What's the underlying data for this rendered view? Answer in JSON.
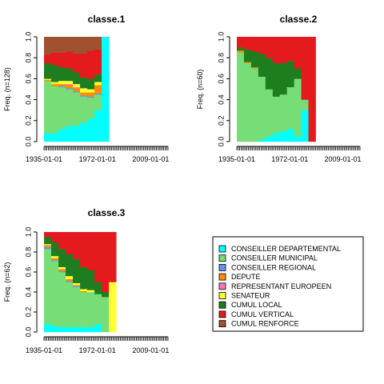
{
  "chart_data": [
    {
      "type": "area",
      "title": "classe.1",
      "ylabel": "Freq. (n=128)",
      "xlabel": "",
      "ylim": [
        0,
        1
      ],
      "ytick_labels": [
        "0.0",
        "0.2",
        "0.4",
        "0.6",
        "0.8",
        "1.0"
      ],
      "xtick_labels": [
        "1935-01-01",
        "1972-01-01",
        "2009-01-01"
      ],
      "x_range": [
        "1935-01-01",
        "2021-01-01"
      ],
      "stacked_bottom_to_top": [
        "CONSEILLER DEPARTEMENTAL",
        "CONSEILLER MUNICIPAL",
        "CONSEILLER REGIONAL",
        "DEPUTE",
        "REPRESENTANT EUROPEEN",
        "SENATEUR",
        "CUMUL LOCAL",
        "CUMUL VERTICAL",
        "CUMUL RENFORCE"
      ],
      "x": [
        "1935-01-01",
        "1940-01-01",
        "1945-01-01",
        "1950-01-01",
        "1955-01-01",
        "1960-01-01",
        "1965-01-01",
        "1970-01-01",
        "1975-01-01"
      ],
      "series": [
        {
          "name": "CONSEILLER DEPARTEMENTAL",
          "values": [
            0.08,
            0.08,
            0.12,
            0.15,
            0.15,
            0.18,
            0.22,
            0.3,
            1.0
          ]
        },
        {
          "name": "CONSEILLER MUNICIPAL",
          "values": [
            0.5,
            0.45,
            0.4,
            0.35,
            0.32,
            0.25,
            0.2,
            0.15,
            0.0
          ]
        },
        {
          "name": "CONSEILLER REGIONAL",
          "values": [
            0.0,
            0.0,
            0.01,
            0.01,
            0.01,
            0.01,
            0.01,
            0.01,
            0.0
          ]
        },
        {
          "name": "DEPUTE",
          "values": [
            0.01,
            0.02,
            0.02,
            0.03,
            0.03,
            0.03,
            0.04,
            0.08,
            0.0
          ]
        },
        {
          "name": "REPRESENTANT EUROPEEN",
          "values": [
            0.0,
            0.0,
            0.0,
            0.01,
            0.01,
            0.0,
            0.0,
            0.0,
            0.0
          ]
        },
        {
          "name": "SENATEUR",
          "values": [
            0.01,
            0.02,
            0.03,
            0.03,
            0.03,
            0.04,
            0.03,
            0.03,
            0.0
          ]
        },
        {
          "name": "CUMUL LOCAL",
          "values": [
            0.15,
            0.16,
            0.13,
            0.12,
            0.11,
            0.1,
            0.1,
            0.07,
            0.0
          ]
        },
        {
          "name": "CUMUL VERTICAL",
          "values": [
            0.08,
            0.12,
            0.14,
            0.16,
            0.18,
            0.23,
            0.27,
            0.24,
            0.0
          ]
        },
        {
          "name": "CUMUL RENFORCE",
          "values": [
            0.17,
            0.15,
            0.15,
            0.14,
            0.16,
            0.16,
            0.13,
            0.12,
            0.0
          ]
        }
      ]
    },
    {
      "type": "area",
      "title": "classe.2",
      "ylabel": "Freq. (n=60)",
      "xlabel": "",
      "ylim": [
        0,
        1
      ],
      "ytick_labels": [
        "0.0",
        "0.2",
        "0.4",
        "0.6",
        "0.8",
        "1.0"
      ],
      "xtick_labels": [
        "1935-01-01",
        "1972-01-01",
        "2009-01-01"
      ],
      "x_range": [
        "1935-01-01",
        "2021-01-01"
      ],
      "x": [
        "1935-01-01",
        "1940-01-01",
        "1945-01-01",
        "1950-01-01",
        "1955-01-01",
        "1960-01-01",
        "1965-01-01",
        "1970-01-01",
        "1975-01-01",
        "1980-01-01",
        "1985-01-01"
      ],
      "series": [
        {
          "name": "CONSEILLER DEPARTEMENTAL",
          "values": [
            0.0,
            0.0,
            0.0,
            0.02,
            0.05,
            0.08,
            0.1,
            0.12,
            0.05,
            0.3,
            0.0
          ]
        },
        {
          "name": "CONSEILLER MUNICIPAL",
          "values": [
            0.85,
            0.75,
            0.7,
            0.6,
            0.45,
            0.35,
            0.35,
            0.4,
            0.55,
            0.1,
            0.0
          ]
        },
        {
          "name": "CONSEILLER REGIONAL",
          "values": [
            0.0,
            0.0,
            0.0,
            0.0,
            0.0,
            0.0,
            0.0,
            0.0,
            0.0,
            0.0,
            0.0
          ]
        },
        {
          "name": "DEPUTE",
          "values": [
            0.02,
            0.01,
            0.01,
            0.0,
            0.0,
            0.0,
            0.0,
            0.0,
            0.0,
            0.0,
            0.0
          ]
        },
        {
          "name": "REPRESENTANT EUROPEEN",
          "values": [
            0.0,
            0.0,
            0.0,
            0.0,
            0.0,
            0.0,
            0.0,
            0.0,
            0.0,
            0.0,
            0.0
          ]
        },
        {
          "name": "SENATEUR",
          "values": [
            0.0,
            0.0,
            0.0,
            0.0,
            0.0,
            0.0,
            0.0,
            0.0,
            0.0,
            0.0,
            0.0
          ]
        },
        {
          "name": "CUMUL LOCAL",
          "values": [
            0.03,
            0.12,
            0.15,
            0.22,
            0.3,
            0.32,
            0.3,
            0.25,
            0.1,
            0.0,
            0.0
          ]
        },
        {
          "name": "CUMUL VERTICAL",
          "values": [
            0.1,
            0.12,
            0.14,
            0.16,
            0.2,
            0.25,
            0.25,
            0.23,
            0.3,
            0.6,
            1.0
          ]
        },
        {
          "name": "CUMUL RENFORCE",
          "values": [
            0.0,
            0.0,
            0.0,
            0.0,
            0.0,
            0.0,
            0.0,
            0.0,
            0.0,
            0.0,
            0.0
          ]
        }
      ]
    },
    {
      "type": "area",
      "title": "classe.3",
      "ylabel": "Freq. (n=62)",
      "xlabel": "",
      "ylim": [
        0,
        1
      ],
      "ytick_labels": [
        "0.0",
        "0.2",
        "0.4",
        "0.6",
        "0.8",
        "1.0"
      ],
      "xtick_labels": [
        "1935-01-01",
        "1972-01-01",
        "2009-01-01"
      ],
      "x_range": [
        "1935-01-01",
        "2021-01-01"
      ],
      "x": [
        "1935-01-01",
        "1940-01-01",
        "1945-01-01",
        "1950-01-01",
        "1955-01-01",
        "1960-01-01",
        "1965-01-01",
        "1970-01-01",
        "1975-01-01",
        "1980-01-01"
      ],
      "series": [
        {
          "name": "CONSEILLER DEPARTEMENTAL",
          "values": [
            0.08,
            0.06,
            0.05,
            0.05,
            0.05,
            0.05,
            0.05,
            0.08,
            0.0,
            0.0
          ]
        },
        {
          "name": "CONSEILLER MUNICIPAL",
          "values": [
            0.75,
            0.65,
            0.55,
            0.45,
            0.4,
            0.35,
            0.35,
            0.3,
            0.35,
            0.0
          ]
        },
        {
          "name": "CONSEILLER REGIONAL",
          "values": [
            0.02,
            0.01,
            0.01,
            0.01,
            0.01,
            0.0,
            0.0,
            0.0,
            0.0,
            0.0
          ]
        },
        {
          "name": "DEPUTE",
          "values": [
            0.02,
            0.02,
            0.02,
            0.02,
            0.01,
            0.01,
            0.0,
            0.0,
            0.0,
            0.0
          ]
        },
        {
          "name": "REPRESENTANT EUROPEEN",
          "values": [
            0.0,
            0.0,
            0.0,
            0.0,
            0.0,
            0.0,
            0.0,
            0.0,
            0.0,
            0.0
          ]
        },
        {
          "name": "SENATEUR",
          "values": [
            0.01,
            0.02,
            0.02,
            0.03,
            0.02,
            0.02,
            0.02,
            0.0,
            0.0,
            0.5
          ]
        },
        {
          "name": "CUMUL LOCAL",
          "values": [
            0.07,
            0.14,
            0.18,
            0.22,
            0.24,
            0.22,
            0.2,
            0.12,
            0.05,
            0.0
          ]
        },
        {
          "name": "CUMUL VERTICAL",
          "values": [
            0.05,
            0.1,
            0.17,
            0.22,
            0.27,
            0.35,
            0.38,
            0.5,
            0.6,
            0.5
          ]
        },
        {
          "name": "CUMUL RENFORCE",
          "values": [
            0.0,
            0.0,
            0.0,
            0.0,
            0.0,
            0.0,
            0.0,
            0.0,
            0.0,
            0.0
          ]
        }
      ]
    }
  ],
  "legend": {
    "placement": "bottom-right",
    "items": [
      {
        "label": "CONSEILLER DEPARTEMENTAL",
        "color": "#00FFFF"
      },
      {
        "label": "CONSEILLER MUNICIPAL",
        "color": "#77DD77"
      },
      {
        "label": "CONSEILLER REGIONAL",
        "color": "#6495ED"
      },
      {
        "label": "DEPUTE",
        "color": "#FF8C00"
      },
      {
        "label": "REPRESENTANT EUROPEEN",
        "color": "#FF77B4"
      },
      {
        "label": "SENATEUR",
        "color": "#FFFF33"
      },
      {
        "label": "CUMUL LOCAL",
        "color": "#1E7D1E"
      },
      {
        "label": "CUMUL VERTICAL",
        "color": "#E41A1C"
      },
      {
        "label": "CUMUL RENFORCE",
        "color": "#A0522D"
      }
    ]
  }
}
